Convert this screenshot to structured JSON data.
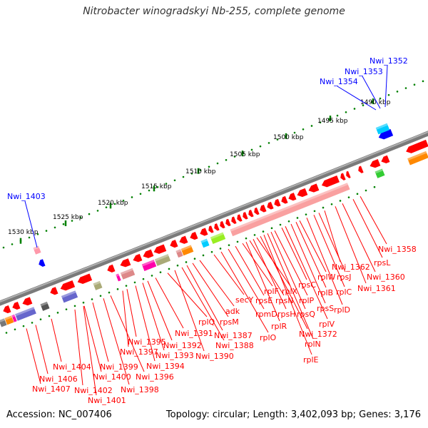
{
  "title": "Nitrobacter winogradskyi Nb-255, complete genome",
  "footer": {
    "accession": "Accession: NC_007406",
    "topology": "Topology: circular; Length: 3,402,093 bp; Genes: 3,176"
  },
  "colors": {
    "forward_gene": "#ff0000",
    "highlight_gene": "#0000ff",
    "backbone": "#808080",
    "tick": "#008000"
  },
  "ticks": [
    "1490 kbp",
    "1495 kbp",
    "1500 kbp",
    "1505 kbp",
    "1510 kbp",
    "1515 kbp",
    "1520 kbp",
    "1525 kbp",
    "1530 kbp"
  ],
  "blue_labels": [
    "Nwi_1352",
    "Nwi_1353",
    "Nwi_1354",
    "Nwi_1403"
  ],
  "gene_labels": [
    "Nwi_1358",
    "rpsL",
    "Nwi_1360",
    "Nwi_1362",
    "rpsJ",
    "Nwi_1361",
    "rplW",
    "rplC",
    "rpsC",
    "rplB",
    "rplD",
    "rpsS",
    "rplV",
    "rplF",
    "rplX",
    "rpsE",
    "rpsN",
    "rplP",
    "secY",
    "rpmD",
    "rpsH",
    "rpsQ",
    "adk",
    "rpsM",
    "rplR",
    "Nwi_1372",
    "rplO",
    "rplN",
    "rplE",
    "Nwi_1387",
    "Nwi_1388",
    "Nwi_1390",
    "rplQ",
    "Nwi_1391",
    "Nwi_1392",
    "Nwi_1393",
    "Nwi_1394",
    "Nwi_1395",
    "Nwi_1397",
    "Nwi_1396",
    "Nwi_1398",
    "Nwi_1399",
    "Nwi_1400",
    "Nwi_1401",
    "Nwi_1402",
    "Nwi_1404",
    "Nwi_1406",
    "Nwi_1407"
  ]
}
